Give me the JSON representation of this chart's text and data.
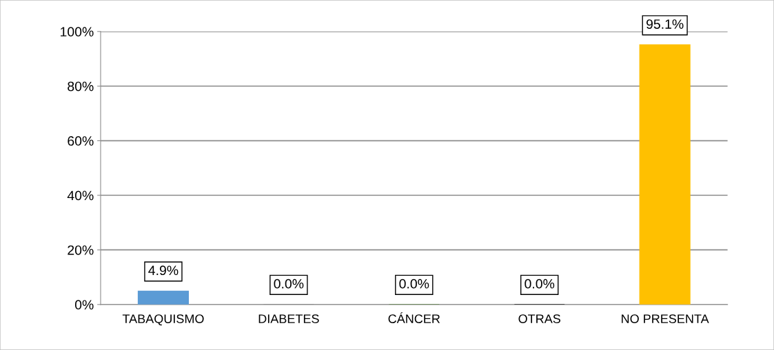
{
  "chart_data": {
    "type": "bar",
    "categories": [
      "TABAQUISMO",
      "DIABETES",
      "CÁNCER",
      "OTRAS",
      "NO PRESENTA"
    ],
    "values": [
      4.9,
      0.0,
      0.0,
      0.0,
      95.1
    ],
    "colors": [
      "#5b9bd5",
      "#7f7f7f",
      "#548235",
      "#000000",
      "#ffc000"
    ],
    "value_labels": [
      "4.9%",
      "0.0%",
      "0.0%",
      "0.0%",
      "95.1%"
    ],
    "ylim": [
      0,
      100
    ],
    "yticks": [
      {
        "value": 0,
        "label": "0%"
      },
      {
        "value": 20,
        "label": "20%"
      },
      {
        "value": 40,
        "label": "40%"
      },
      {
        "value": 60,
        "label": "60%"
      },
      {
        "value": 80,
        "label": "80%"
      },
      {
        "value": 100,
        "label": "100%"
      }
    ],
    "grid": "y"
  }
}
